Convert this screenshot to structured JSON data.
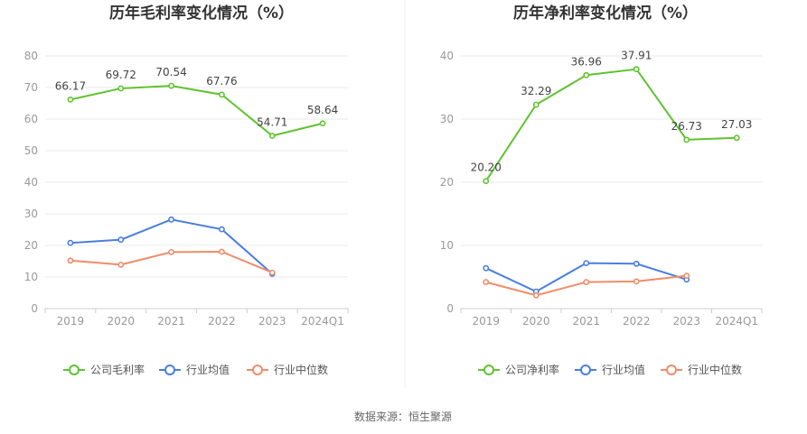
{
  "source": "数据来源：恒生聚源",
  "chart_data": [
    {
      "type": "line",
      "title": "历年毛利率变化情况（%）",
      "categories": [
        "2019",
        "2020",
        "2021",
        "2022",
        "2023",
        "2024Q1"
      ],
      "ylim": [
        0,
        80
      ],
      "yticks": [
        0,
        10,
        20,
        30,
        40,
        50,
        60,
        70,
        80
      ],
      "grid": true,
      "legend_position": "bottom",
      "series": [
        {
          "name": "公司毛利率",
          "color": "#5fc330",
          "values": [
            66.17,
            69.72,
            70.54,
            67.76,
            54.71,
            58.64
          ],
          "labels": true
        },
        {
          "name": "行业均值",
          "color": "#4a7fe0",
          "values": [
            20.8,
            21.8,
            28.2,
            25.1,
            11.0,
            null
          ],
          "labels": false
        },
        {
          "name": "行业中位数",
          "color": "#f08c68",
          "values": [
            15.2,
            13.9,
            17.9,
            18.0,
            11.4,
            null
          ],
          "labels": false
        }
      ]
    },
    {
      "type": "line",
      "title": "历年净利率变化情况（%）",
      "categories": [
        "2019",
        "2020",
        "2021",
        "2022",
        "2023",
        "2024Q1"
      ],
      "ylim": [
        0,
        40
      ],
      "yticks": [
        0,
        10,
        20,
        30,
        40
      ],
      "grid": true,
      "legend_position": "bottom",
      "series": [
        {
          "name": "公司净利率",
          "color": "#5fc330",
          "values": [
            20.2,
            32.29,
            36.96,
            37.91,
            26.73,
            27.03
          ],
          "labels": true
        },
        {
          "name": "行业均值",
          "color": "#4a7fe0",
          "values": [
            6.4,
            2.7,
            7.2,
            7.1,
            4.6,
            null
          ],
          "labels": false
        },
        {
          "name": "行业中位数",
          "color": "#f08c68",
          "values": [
            4.2,
            2.1,
            4.2,
            4.3,
            5.2,
            null
          ],
          "labels": false
        }
      ]
    }
  ]
}
